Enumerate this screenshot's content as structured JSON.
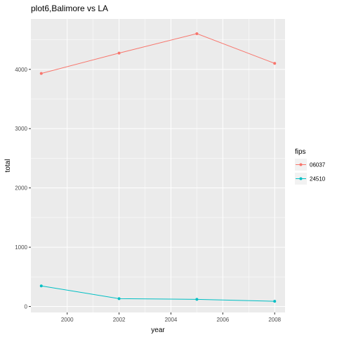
{
  "chart_data": {
    "type": "line",
    "title": "plot6,Balimore vs LA",
    "xlabel": "year",
    "ylabel": "total",
    "x": [
      1999,
      2002,
      2005,
      2008
    ],
    "xlim": [
      1998.6,
      2008.4
    ],
    "ylim": [
      -100,
      4850
    ],
    "xticks": [
      2000,
      2002,
      2004,
      2006,
      2008
    ],
    "yticks": [
      0,
      1000,
      2000,
      3000,
      4000
    ],
    "grid": true,
    "legend": {
      "title": "fips",
      "position": "right"
    },
    "series": [
      {
        "name": "06037",
        "color": "#F8766D",
        "values": [
          3931,
          4274,
          4602,
          4101
        ]
      },
      {
        "name": "24510",
        "color": "#00BFC4",
        "values": [
          347,
          133,
          121,
          88
        ]
      }
    ]
  }
}
